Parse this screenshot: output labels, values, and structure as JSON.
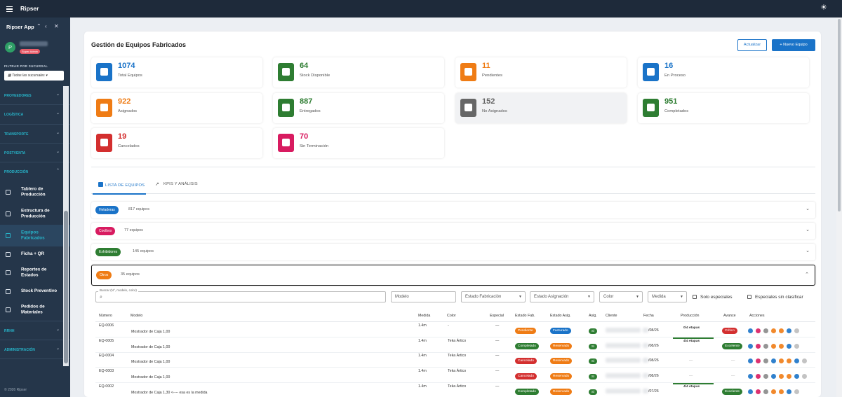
{
  "topbar": {
    "brand": "Ripser"
  },
  "sidebar": {
    "app_name": "Ripser App",
    "role": "Super Admin",
    "avatar_letter": "P",
    "filter_label": "FILTRAR POR SUCURSAL",
    "branch": "Todas las sucursales",
    "sections_top": [
      "PROVEEDORES",
      "LOGÍSTICA",
      "TRANSPORTE",
      "POSTVENTA",
      "PRODUCCIÓN"
    ],
    "production_items": [
      "Tablero de Producción",
      "Estructura de Producción",
      "Equipos Fabricados",
      "Ficha + QR",
      "Reportes de Estados",
      "Stock Preventivo",
      "Pedidos de Materiales"
    ],
    "sections_bottom": [
      "RRHH",
      "ADMINISTRACIÓN"
    ],
    "footer": "© 2026 Ripser"
  },
  "main": {
    "title": "Gestión de Equipos Fabricados",
    "refresh_label": "Actualizar",
    "new_label": "+ Nuevo Equipo",
    "stats": [
      {
        "value": "1074",
        "label": "Total Equipos",
        "color": "#1a73c8"
      },
      {
        "value": "64",
        "label": "Stock Disponible",
        "color": "#2e7d32"
      },
      {
        "value": "11",
        "label": "Pendientes",
        "color": "#ef7c15"
      },
      {
        "value": "16",
        "label": "En Proceso",
        "color": "#1a73c8"
      },
      {
        "value": "922",
        "label": "Asignados",
        "color": "#ef7c15"
      },
      {
        "value": "887",
        "label": "Entregados",
        "color": "#2e7d32"
      },
      {
        "value": "152",
        "label": "No Asignados",
        "color": "#666666"
      },
      {
        "value": "951",
        "label": "Completados",
        "color": "#2e7d32"
      },
      {
        "value": "19",
        "label": "Cancelados",
        "color": "#d32f2f"
      },
      {
        "value": "70",
        "label": "Sin Terminación",
        "color": "#d81b60"
      }
    ],
    "tabs": [
      "LISTA DE EQUIPOS",
      "KPIS Y ANÁLISIS"
    ],
    "groups": [
      {
        "name": "Heladeras",
        "count": "817 equipos",
        "color": "#1a73c8"
      },
      {
        "name": "Coolbox",
        "count": "77 equipos",
        "color": "#d81b60"
      },
      {
        "name": "Exhibidores",
        "count": "145 equipos",
        "color": "#2e7d32"
      },
      {
        "name": "Otros",
        "count": "35 equipos",
        "color": "#ef7c15"
      }
    ],
    "filters": {
      "search_label": "Buscar (N°, modelo, color)",
      "modelo": "Modelo",
      "estado_fab": "Estado Fabricación",
      "estado_asig": "Estado Asignación",
      "color": "Color",
      "medida": "Medida",
      "solo_especiales": "Solo especiales",
      "sin_clasificar": "Especiales sin clasificar"
    },
    "columns": [
      "Número",
      "Modelo",
      "Medida",
      "Color",
      "Especial",
      "Estado Fab.",
      "Estado Asig.",
      "Asig.",
      "Cliente",
      "Fecha",
      "Producción",
      "Avance",
      "Acciones"
    ],
    "rows": [
      {
        "numero": "EQ-0006",
        "modelo": "Mostrador de Caja 1,00",
        "medida": "1.4m",
        "color": "-",
        "especial": "—",
        "fab": "Pendiente",
        "fab_color": "#ef7c15",
        "asig": "Facturado",
        "asig_color": "#1a73c8",
        "si": "Sí",
        "fecha": "/08/26",
        "prod": "0/4 etapas",
        "prod_fill": 0,
        "avance": "Crítico",
        "av_color": "#d32f2f"
      },
      {
        "numero": "EQ-0005",
        "modelo": "Mostrador de Caja 1,00",
        "medida": "1.4m",
        "color": "Teka Ártico",
        "especial": "—",
        "fab": "Completado",
        "fab_color": "#2e7d32",
        "asig": "Reservado",
        "asig_color": "#ef7c15",
        "si": "Sí",
        "fecha": "/08/26",
        "prod": "4/4 etapas",
        "prod_fill": 1,
        "avance": "Excelente",
        "av_color": "#2e7d32"
      },
      {
        "numero": "EQ-0004",
        "modelo": "Mostrador de Caja 1,00",
        "medida": "1.4m",
        "color": "Teka Ártico",
        "especial": "—",
        "fab": "Cancelado",
        "fab_color": "#d32f2f",
        "asig": "Reservado",
        "asig_color": "#ef7c15",
        "si": "Sí",
        "fecha": "/08/26",
        "prod": "—",
        "prod_fill": null,
        "avance": "—",
        "av_color": ""
      },
      {
        "numero": "EQ-0003",
        "modelo": "Mostrador de Caja 1,00",
        "medida": "1.4m",
        "color": "Teka Ártico",
        "especial": "—",
        "fab": "Cancelado",
        "fab_color": "#d32f2f",
        "asig": "Reservado",
        "asig_color": "#ef7c15",
        "si": "Sí",
        "fecha": "/08/26",
        "prod": "—",
        "prod_fill": null,
        "avance": "—",
        "av_color": ""
      },
      {
        "numero": "EQ-0002",
        "modelo": "Mostrador de Caja 1,30 <---- esa es la medida",
        "medida": "1.4m",
        "color": "Teka Ártico",
        "especial": "—",
        "fab": "Completado",
        "fab_color": "#2e7d32",
        "asig": "Reservado",
        "asig_color": "#ef7c15",
        "si": "Sí",
        "fecha": "/07/26",
        "prod": "4/4 etapas",
        "prod_fill": 1,
        "avance": "Excelente",
        "av_color": "#2e7d32"
      }
    ]
  }
}
